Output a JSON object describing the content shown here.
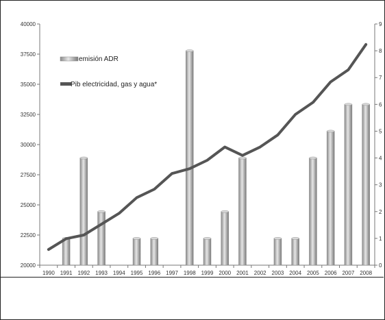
{
  "chart_data": {
    "type": "bar",
    "categories": [
      "1990",
      "1991",
      "1992",
      "1993",
      "1994",
      "1995",
      "1996",
      "1997",
      "1998",
      "1999",
      "2000",
      "2001",
      "2002",
      "2003",
      "2004",
      "2005",
      "2006",
      "2007",
      "2008"
    ],
    "series": [
      {
        "name": "emisión ADR",
        "type": "bar",
        "axis": "right",
        "values": [
          0,
          1,
          4,
          2,
          0,
          1,
          1,
          0,
          8,
          1,
          2,
          4,
          0,
          1,
          1,
          4,
          5,
          6,
          6
        ],
        "color": "#b8b8b8"
      },
      {
        "name": "Pib electricidad, gas y agua*",
        "type": "line",
        "axis": "left",
        "values": [
          21300,
          22200,
          22500,
          23400,
          24300,
          25600,
          26300,
          27600,
          28000,
          28700,
          29800,
          29100,
          29800,
          30800,
          32500,
          33500,
          35200,
          36200,
          38300
        ],
        "color": "#555555"
      }
    ],
    "y_left": {
      "min": 20000,
      "max": 40000,
      "ticks": [
        "20000",
        "22500",
        "25000",
        "27500",
        "30000",
        "32500",
        "35000",
        "37500",
        "40000"
      ]
    },
    "y_right": {
      "min": 0,
      "max": 9,
      "ticks": [
        "0",
        "1",
        "2",
        "3",
        "4",
        "5",
        "6",
        "7",
        "8",
        "9"
      ]
    },
    "legend": {
      "placement": "top-left",
      "items": [
        {
          "label": "emisión ADR",
          "kind": "bar"
        },
        {
          "label": "Pib electricidad, gas y agua*",
          "kind": "line"
        }
      ]
    },
    "grid": false
  }
}
